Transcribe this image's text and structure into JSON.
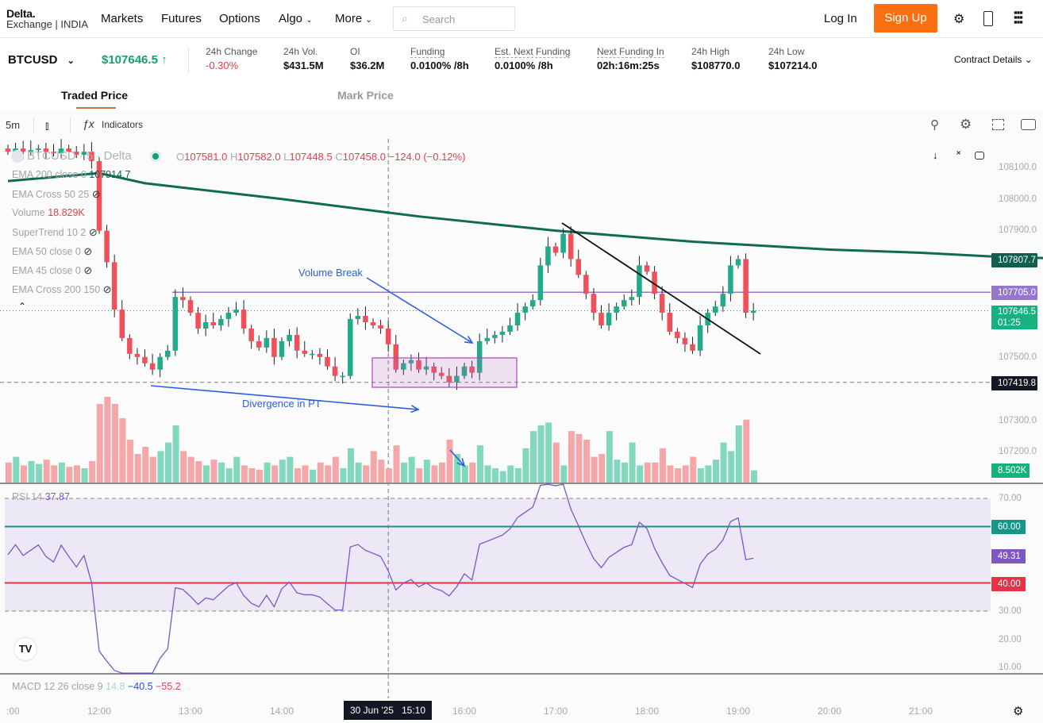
{
  "header": {
    "logo_top": "Delta.",
    "logo_bottom": "Exchange | INDIA",
    "nav": [
      "Markets",
      "Futures",
      "Options",
      "Algo",
      "More"
    ],
    "search_placeholder": "Search",
    "login": "Log In",
    "signup": "Sign Up"
  },
  "ticker": {
    "symbol": "BTCUSD",
    "price": "$107646.5",
    "stats": [
      {
        "label": "24h Change",
        "value": "-0.30%",
        "negative": true
      },
      {
        "label": "24h Vol.",
        "value": "$431.5M"
      },
      {
        "label": "OI",
        "value": "$36.2M"
      },
      {
        "label": "Funding",
        "value": "0.0100% /8h"
      },
      {
        "label": "Est. Next Funding",
        "value": "0.0100% /8h"
      },
      {
        "label": "Next Funding In",
        "value": "02h:16m:25s"
      },
      {
        "label": "24h High",
        "value": "$108770.0"
      },
      {
        "label": "24h Low",
        "value": "$107214.0"
      }
    ],
    "contract_details": "Contract Details"
  },
  "tabs": [
    "Traded Price",
    "Mark Price"
  ],
  "toolbar": {
    "interval": "5m",
    "indicators": "Indicators"
  },
  "legend": {
    "title": "BTCUSD · 5 · Delta",
    "o": "107581.0",
    "h": "107582.0",
    "l": "107448.5",
    "c": "107458.0",
    "change": "−124.0 (−0.12%)",
    "indicators": [
      {
        "name": "EMA 200 close 0",
        "value": "107914.7"
      },
      {
        "name": "EMA Cross 50 25"
      },
      {
        "name": "Volume",
        "value": "18.829K"
      },
      {
        "name": "SuperTrend 10 2"
      },
      {
        "name": "EMA 50 close 0"
      },
      {
        "name": "EMA 45 close 0"
      },
      {
        "name": "EMA Cross 200 150"
      }
    ],
    "rsi_name": "RSI 14",
    "rsi_value": "37.87",
    "macd_name": "MACD 12 26 close 9",
    "macd_vals": [
      "14.8",
      "−40.5",
      "−55.2"
    ]
  },
  "annotations": {
    "volume_break": "Volume Break",
    "divergence": "Divergence in PT"
  },
  "price_axis": [
    "108100.0",
    "108000.0",
    "107900.0",
    "107500.0",
    "107300.0",
    "107200.0"
  ],
  "price_tags": {
    "ema": "107807.7",
    "hline": "107705.0",
    "last": "107646.5",
    "countdown": "01:25",
    "cross": "107419.8",
    "volume": "8.502K"
  },
  "rsi_axis": [
    "70.00",
    "30.00",
    "20.00",
    "10.00"
  ],
  "rsi_tags": {
    "upper": "60.00",
    "current": "49.31",
    "lower": "40.00"
  },
  "time_axis": [
    ":00",
    "12:00",
    "13:00",
    "14:00",
    "16:00",
    "17:00",
    "18:00",
    "19:00",
    "20:00",
    "21:00"
  ],
  "crosshair_time": "30 Jun '25   15:10",
  "colors": {
    "up": "#22ab8a",
    "down": "#ef5059",
    "ema": "#0f6b53",
    "hline": "#9575cd",
    "rsi": "#7e57c2"
  },
  "chart_data": {
    "type": "candlestick",
    "interval_min": 5,
    "start": "11:00",
    "closes": [
      108150,
      108160,
      108150,
      108155,
      108160,
      108150,
      108145,
      108160,
      108150,
      108140,
      108150,
      108120,
      107900,
      107800,
      107650,
      107560,
      107510,
      107500,
      107480,
      107460,
      107500,
      107520,
      107690,
      107680,
      107640,
      107590,
      107610,
      107600,
      107620,
      107640,
      107650,
      107590,
      107550,
      107530,
      107560,
      107500,
      107550,
      107570,
      107520,
      107510,
      107510,
      107500,
      107470,
      107440,
      107440,
      107620,
      107630,
      107610,
      107600,
      107590,
      107540,
      107460,
      107480,
      107490,
      107460,
      107470,
      107450,
      107440,
      107420,
      107440,
      107470,
      107450,
      107550,
      107560,
      107570,
      107580,
      107600,
      107640,
      107660,
      107680,
      107790,
      107850,
      107830,
      107890,
      107810,
      107760,
      107700,
      107640,
      107600,
      107640,
      107660,
      107680,
      107690,
      107790,
      107770,
      107700,
      107640,
      107580,
      107560,
      107540,
      107520,
      107600,
      107640,
      107660,
      107700,
      107790,
      107810,
      107640,
      107646.5
    ],
    "volumes_k": [
      14,
      18,
      12,
      15,
      13,
      16,
      12,
      14,
      11,
      12,
      10,
      15,
      55,
      60,
      55,
      45,
      30,
      20,
      25,
      18,
      22,
      28,
      40,
      22,
      18,
      15,
      12,
      16,
      14,
      10,
      18,
      12,
      10,
      9,
      14,
      12,
      16,
      18,
      10,
      12,
      9,
      14,
      12,
      18,
      10,
      24,
      14,
      12,
      22,
      16,
      10,
      26,
      14,
      18,
      10,
      16,
      12,
      14,
      30,
      20,
      12,
      14,
      26,
      12,
      10,
      8,
      12,
      10,
      24,
      36,
      40,
      42,
      28,
      12,
      36,
      34,
      30,
      18,
      20,
      36,
      16,
      14,
      28,
      12,
      14,
      14,
      24,
      12,
      10,
      12,
      18,
      10,
      12,
      16,
      28,
      22,
      40,
      44,
      8.5
    ],
    "ema200": [
      [
        0,
        108057
      ],
      [
        60,
        108082
      ],
      [
        90,
        108050
      ],
      [
        180,
        108000
      ],
      [
        270,
        107945
      ],
      [
        360,
        107900
      ],
      [
        450,
        107865
      ],
      [
        540,
        107840
      ],
      [
        600,
        107830
      ],
      [
        660,
        107815
      ],
      [
        740,
        107808
      ],
      [
        775,
        107807.7
      ]
    ],
    "hline": 107705,
    "crosshair": {
      "time_min": 250,
      "price": 107419.8
    },
    "rsi_levels": [
      70,
      60,
      40,
      30
    ],
    "price_range": [
      107150,
      108150
    ],
    "rsi_range": [
      5,
      75
    ]
  }
}
